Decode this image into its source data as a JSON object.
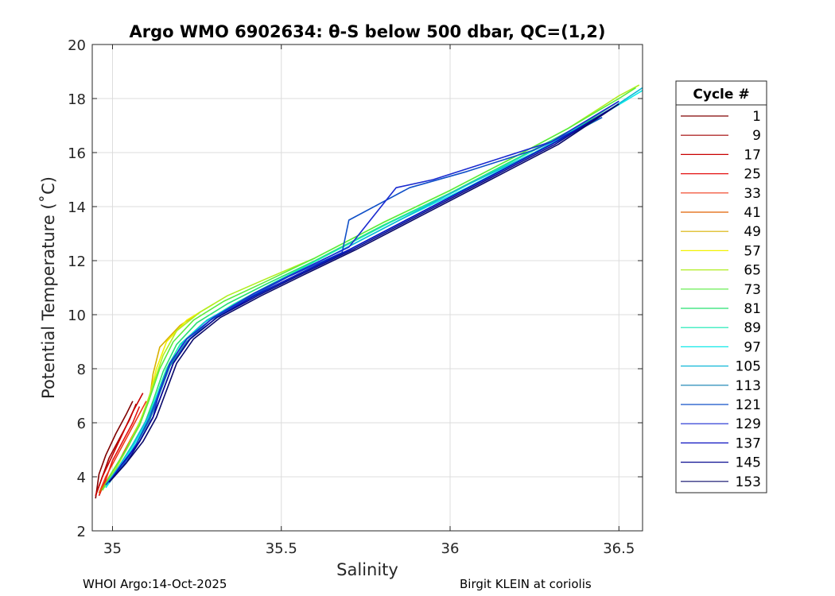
{
  "chart_data": {
    "type": "line",
    "title": "Argo WMO 6902634: θ-S below 500 dbar,  QC=(1,2)",
    "xlabel": "Salinity",
    "ylabel": "Potential Temperature (˚C)",
    "xlim": [
      34.94,
      36.57
    ],
    "ylim": [
      2,
      20
    ],
    "xticks": [
      35,
      35.5,
      36,
      36.5
    ],
    "xtick_labels": [
      "35",
      "35.5",
      "36",
      "36.5"
    ],
    "yticks": [
      2,
      4,
      6,
      8,
      10,
      12,
      14,
      16,
      18,
      20
    ],
    "ytick_labels": [
      "2",
      "4",
      "6",
      "8",
      "10",
      "12",
      "14",
      "16",
      "18",
      "20"
    ],
    "grid": true,
    "legend_title": "Cycle #",
    "legend_position": "right, outside",
    "legend_entries": [
      {
        "label": "1",
        "color": "#800000"
      },
      {
        "label": "9",
        "color": "#a10000"
      },
      {
        "label": "17",
        "color": "#c80000"
      },
      {
        "label": "25",
        "color": "#e41010"
      },
      {
        "label": "33",
        "color": "#f03a1a"
      },
      {
        "label": "41",
        "color": "#e06000"
      },
      {
        "label": "49",
        "color": "#d8b000"
      },
      {
        "label": "57",
        "color": "#f2f200"
      },
      {
        "label": "65",
        "color": "#b0ee20"
      },
      {
        "label": "73",
        "color": "#58ec40"
      },
      {
        "label": "81",
        "color": "#28e070"
      },
      {
        "label": "89",
        "color": "#10e8b0"
      },
      {
        "label": "97",
        "color": "#10e8e8"
      },
      {
        "label": "105",
        "color": "#10b8d8"
      },
      {
        "label": "113",
        "color": "#0e7fb0"
      },
      {
        "label": "121",
        "color": "#1050c8"
      },
      {
        "label": "129",
        "color": "#1a2ad0"
      },
      {
        "label": "137",
        "color": "#0a10c0"
      },
      {
        "label": "145",
        "color": "#080a90"
      },
      {
        "label": "153",
        "color": "#0a0a6a"
      }
    ],
    "series": [
      {
        "name": "1",
        "color": "#800000",
        "points": [
          [
            34.95,
            3.2
          ],
          [
            34.96,
            4.1
          ],
          [
            34.98,
            4.8
          ],
          [
            35.01,
            5.6
          ],
          [
            35.04,
            6.3
          ],
          [
            35.06,
            6.8
          ]
        ]
      },
      {
        "name": "9",
        "color": "#a10000",
        "points": [
          [
            34.95,
            3.3
          ],
          [
            34.97,
            4.0
          ],
          [
            34.99,
            4.7
          ],
          [
            35.02,
            5.4
          ],
          [
            35.05,
            6.1
          ],
          [
            35.07,
            6.7
          ]
        ]
      },
      {
        "name": "17",
        "color": "#c80000",
        "points": [
          [
            34.95,
            3.3
          ],
          [
            34.97,
            4.0
          ],
          [
            35.0,
            4.8
          ],
          [
            35.03,
            5.6
          ],
          [
            35.06,
            6.4
          ],
          [
            35.09,
            7.1
          ]
        ]
      },
      {
        "name": "25",
        "color": "#e41010",
        "points": [
          [
            34.96,
            3.3
          ],
          [
            34.98,
            3.9
          ],
          [
            35.0,
            4.6
          ],
          [
            35.03,
            5.3
          ],
          [
            35.06,
            6.0
          ],
          [
            35.08,
            6.6
          ]
        ]
      },
      {
        "name": "33",
        "color": "#f03a1a",
        "points": [
          [
            34.96,
            3.4
          ],
          [
            34.98,
            4.0
          ],
          [
            35.01,
            4.7
          ],
          [
            35.04,
            5.4
          ],
          [
            35.07,
            6.1
          ],
          [
            35.1,
            6.8
          ]
        ]
      },
      {
        "name": "41",
        "color": "#e06000",
        "points": [
          [
            34.96,
            3.4
          ],
          [
            34.99,
            4.0
          ],
          [
            35.02,
            4.6
          ],
          [
            35.05,
            5.3
          ],
          [
            35.08,
            6.0
          ],
          [
            35.11,
            6.9
          ]
        ]
      },
      {
        "name": "49",
        "color": "#d8b000",
        "points": [
          [
            34.97,
            3.5
          ],
          [
            35.0,
            4.2
          ],
          [
            35.04,
            5.0
          ],
          [
            35.08,
            5.9
          ],
          [
            35.11,
            6.9
          ],
          [
            35.12,
            7.8
          ],
          [
            35.14,
            8.8
          ],
          [
            35.2,
            9.6
          ],
          [
            35.26,
            10.1
          ]
        ]
      },
      {
        "name": "57",
        "color": "#f2f200",
        "points": [
          [
            34.97,
            3.5
          ],
          [
            35.0,
            4.2
          ],
          [
            35.04,
            5.0
          ],
          [
            35.08,
            6.0
          ],
          [
            35.11,
            7.0
          ],
          [
            35.13,
            8.0
          ],
          [
            35.16,
            9.0
          ],
          [
            35.22,
            9.8
          ],
          [
            35.3,
            10.4
          ]
        ]
      },
      {
        "name": "65",
        "color": "#b0ee20",
        "points": [
          [
            34.97,
            3.5
          ],
          [
            35.01,
            4.3
          ],
          [
            35.05,
            5.2
          ],
          [
            35.09,
            6.3
          ],
          [
            35.12,
            7.4
          ],
          [
            35.15,
            8.5
          ],
          [
            35.19,
            9.4
          ],
          [
            35.26,
            10.1
          ],
          [
            35.34,
            10.7
          ],
          [
            35.45,
            11.3
          ],
          [
            35.6,
            12.1
          ],
          [
            35.8,
            13.4
          ],
          [
            36.0,
            14.6
          ],
          [
            36.2,
            15.9
          ],
          [
            36.35,
            16.9
          ],
          [
            36.5,
            18.1
          ],
          [
            36.56,
            18.5
          ]
        ]
      },
      {
        "name": "73",
        "color": "#58ec40",
        "points": [
          [
            34.97,
            3.5
          ],
          [
            35.0,
            4.2
          ],
          [
            35.04,
            5.0
          ],
          [
            35.08,
            5.9
          ],
          [
            35.11,
            6.9
          ],
          [
            35.14,
            8.0
          ],
          [
            35.18,
            9.0
          ],
          [
            35.24,
            9.8
          ],
          [
            35.33,
            10.5
          ],
          [
            35.45,
            11.2
          ],
          [
            35.6,
            12.1
          ],
          [
            35.8,
            13.4
          ],
          [
            36.0,
            14.6
          ],
          [
            36.2,
            15.9
          ],
          [
            36.35,
            16.9
          ],
          [
            36.5,
            18.0
          ],
          [
            36.55,
            18.4
          ]
        ]
      },
      {
        "name": "81",
        "color": "#28e070",
        "points": [
          [
            34.98,
            3.6
          ],
          [
            35.01,
            4.2
          ],
          [
            35.05,
            5.0
          ],
          [
            35.09,
            5.8
          ],
          [
            35.12,
            6.8
          ],
          [
            35.15,
            7.9
          ],
          [
            35.19,
            8.9
          ],
          [
            35.25,
            9.7
          ],
          [
            35.34,
            10.4
          ],
          [
            35.45,
            11.1
          ],
          [
            35.6,
            12.0
          ],
          [
            35.8,
            13.3
          ],
          [
            36.0,
            14.5
          ],
          [
            36.2,
            15.8
          ],
          [
            36.4,
            17.1
          ],
          [
            36.5,
            17.9
          ]
        ]
      },
      {
        "name": "89",
        "color": "#10e8b0",
        "points": [
          [
            34.98,
            3.6
          ],
          [
            35.02,
            4.3
          ],
          [
            35.06,
            5.1
          ],
          [
            35.1,
            6.0
          ],
          [
            35.13,
            7.0
          ],
          [
            35.16,
            8.0
          ],
          [
            35.2,
            8.9
          ],
          [
            35.27,
            9.7
          ],
          [
            35.36,
            10.4
          ],
          [
            35.48,
            11.2
          ],
          [
            35.62,
            12.1
          ],
          [
            35.82,
            13.4
          ],
          [
            36.02,
            14.6
          ],
          [
            36.22,
            15.9
          ],
          [
            36.42,
            17.2
          ],
          [
            36.53,
            18.0
          ]
        ]
      },
      {
        "name": "97",
        "color": "#10e8e8",
        "points": [
          [
            34.98,
            3.6
          ],
          [
            35.02,
            4.3
          ],
          [
            35.06,
            5.1
          ],
          [
            35.1,
            6.0
          ],
          [
            35.13,
            7.0
          ],
          [
            35.17,
            8.1
          ],
          [
            35.21,
            9.0
          ],
          [
            35.28,
            9.8
          ],
          [
            35.38,
            10.5
          ],
          [
            35.5,
            11.3
          ],
          [
            35.65,
            12.2
          ],
          [
            35.85,
            13.5
          ],
          [
            36.05,
            14.7
          ],
          [
            36.25,
            16.0
          ],
          [
            36.45,
            17.4
          ],
          [
            36.57,
            18.3
          ]
        ]
      },
      {
        "name": "105",
        "color": "#10b8d8",
        "points": [
          [
            34.98,
            3.7
          ],
          [
            35.02,
            4.4
          ],
          [
            35.06,
            5.2
          ],
          [
            35.1,
            6.1
          ],
          [
            35.14,
            7.1
          ],
          [
            35.17,
            8.1
          ],
          [
            35.21,
            9.0
          ],
          [
            35.28,
            9.8
          ],
          [
            35.38,
            10.5
          ],
          [
            35.5,
            11.3
          ],
          [
            35.65,
            12.2
          ],
          [
            35.85,
            13.5
          ],
          [
            36.05,
            14.8
          ],
          [
            36.25,
            16.0
          ],
          [
            36.45,
            17.4
          ],
          [
            36.57,
            18.4
          ]
        ]
      },
      {
        "name": "113",
        "color": "#0e7fb0",
        "points": [
          [
            34.98,
            3.7
          ],
          [
            35.03,
            4.4
          ],
          [
            35.07,
            5.2
          ],
          [
            35.11,
            6.1
          ],
          [
            35.14,
            7.1
          ],
          [
            35.17,
            8.1
          ],
          [
            35.22,
            9.0
          ],
          [
            35.29,
            9.8
          ],
          [
            35.39,
            10.5
          ],
          [
            35.52,
            11.3
          ],
          [
            35.67,
            12.2
          ],
          [
            35.87,
            13.5
          ],
          [
            36.07,
            14.8
          ],
          [
            36.27,
            16.1
          ],
          [
            36.45,
            17.3
          ]
        ]
      },
      {
        "name": "121",
        "color": "#1050c8",
        "points": [
          [
            34.98,
            3.7
          ],
          [
            35.03,
            4.4
          ],
          [
            35.07,
            5.2
          ],
          [
            35.11,
            6.2
          ],
          [
            35.14,
            7.2
          ],
          [
            35.17,
            8.2
          ],
          [
            35.22,
            9.1
          ],
          [
            35.3,
            9.9
          ],
          [
            35.4,
            10.6
          ],
          [
            35.52,
            11.4
          ],
          [
            35.68,
            12.3
          ],
          [
            35.7,
            13.5
          ],
          [
            35.88,
            14.7
          ],
          [
            36.05,
            15.3
          ],
          [
            36.25,
            16.1
          ],
          [
            36.45,
            17.3
          ]
        ]
      },
      {
        "name": "129",
        "color": "#1a2ad0",
        "points": [
          [
            34.99,
            3.8
          ],
          [
            35.03,
            4.5
          ],
          [
            35.08,
            5.3
          ],
          [
            35.12,
            6.2
          ],
          [
            35.14,
            7.2
          ],
          [
            35.17,
            8.2
          ],
          [
            35.22,
            9.1
          ],
          [
            35.3,
            9.9
          ],
          [
            35.42,
            10.8
          ],
          [
            35.55,
            11.6
          ],
          [
            35.7,
            12.5
          ],
          [
            35.84,
            14.7
          ],
          [
            35.95,
            15.0
          ],
          [
            36.1,
            15.6
          ],
          [
            36.3,
            16.4
          ],
          [
            36.5,
            17.9
          ]
        ]
      },
      {
        "name": "137",
        "color": "#0a10c0",
        "points": [
          [
            34.99,
            3.8
          ],
          [
            35.03,
            4.5
          ],
          [
            35.08,
            5.3
          ],
          [
            35.12,
            6.2
          ],
          [
            35.15,
            7.2
          ],
          [
            35.18,
            8.2
          ],
          [
            35.23,
            9.1
          ],
          [
            35.31,
            9.9
          ],
          [
            35.42,
            10.7
          ],
          [
            35.55,
            11.5
          ],
          [
            35.7,
            12.4
          ],
          [
            35.9,
            13.7
          ],
          [
            36.1,
            15.0
          ],
          [
            36.3,
            16.3
          ],
          [
            36.5,
            17.8
          ]
        ]
      },
      {
        "name": "145",
        "color": "#080a90",
        "points": [
          [
            34.99,
            3.8
          ],
          [
            35.04,
            4.5
          ],
          [
            35.08,
            5.3
          ],
          [
            35.12,
            6.2
          ],
          [
            35.15,
            7.2
          ],
          [
            35.18,
            8.2
          ],
          [
            35.23,
            9.1
          ],
          [
            35.31,
            9.9
          ],
          [
            35.43,
            10.7
          ],
          [
            35.56,
            11.5
          ],
          [
            35.71,
            12.4
          ],
          [
            35.91,
            13.7
          ],
          [
            36.11,
            15.0
          ],
          [
            36.31,
            16.3
          ],
          [
            36.5,
            17.8
          ]
        ]
      },
      {
        "name": "153",
        "color": "#0a0a6a",
        "points": [
          [
            34.99,
            3.8
          ],
          [
            35.04,
            4.5
          ],
          [
            35.09,
            5.3
          ],
          [
            35.13,
            6.2
          ],
          [
            35.16,
            7.2
          ],
          [
            35.19,
            8.2
          ],
          [
            35.24,
            9.1
          ],
          [
            35.32,
            9.9
          ],
          [
            35.44,
            10.7
          ],
          [
            35.57,
            11.5
          ],
          [
            35.72,
            12.4
          ],
          [
            35.92,
            13.7
          ],
          [
            36.12,
            15.0
          ],
          [
            36.32,
            16.3
          ],
          [
            36.5,
            17.8
          ]
        ]
      }
    ]
  },
  "footer": {
    "left": "WHOI Argo:14-Oct-2025",
    "right": "Birgit KLEIN at coriolis"
  }
}
